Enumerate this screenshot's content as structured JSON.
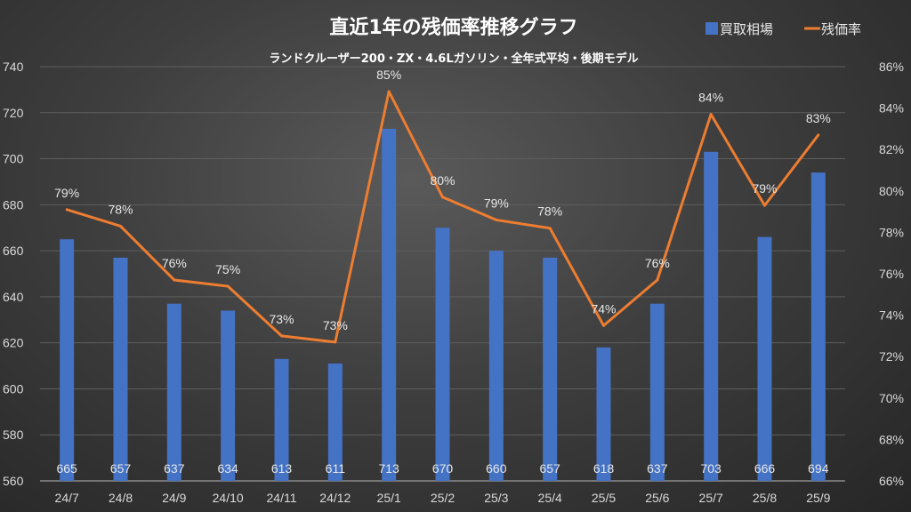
{
  "chart_data": {
    "type": "bar+line",
    "title": "直近1年の残価率推移グラフ",
    "subtitle": "ランドクルーザー200・ZX・4.6Lガソリン・全年式平均・後期モデル",
    "categories": [
      "24/7",
      "24/8",
      "24/9",
      "24/10",
      "24/11",
      "24/12",
      "25/1",
      "25/2",
      "25/3",
      "25/4",
      "25/5",
      "25/6",
      "25/7",
      "25/8",
      "25/9"
    ],
    "series": [
      {
        "name": "買取相場",
        "type": "bar",
        "axis": "left",
        "color": "#4472C4",
        "values": [
          665,
          657,
          637,
          634,
          613,
          611,
          713,
          670,
          660,
          657,
          618,
          637,
          703,
          666,
          694
        ],
        "labels": [
          "665",
          "657",
          "637",
          "634",
          "613",
          "611",
          "713",
          "670",
          "660",
          "657",
          "618",
          "637",
          "703",
          "666",
          "694"
        ]
      },
      {
        "name": "残価率",
        "type": "line",
        "axis": "right",
        "color": "#ED7D31",
        "values": [
          79.1,
          78.3,
          75.7,
          75.4,
          73.0,
          72.7,
          84.8,
          79.7,
          78.6,
          78.2,
          73.5,
          75.7,
          83.7,
          79.3,
          82.7
        ],
        "labels": [
          "79%",
          "78%",
          "76%",
          "75%",
          "73%",
          "73%",
          "85%",
          "80%",
          "79%",
          "78%",
          "74%",
          "76%",
          "84%",
          "79%",
          "83%"
        ]
      }
    ],
    "y_left": {
      "min": 560,
      "max": 740,
      "step": 20,
      "ticks": [
        "560",
        "580",
        "600",
        "620",
        "640",
        "660",
        "680",
        "700",
        "720",
        "740"
      ]
    },
    "y_right": {
      "min": 66,
      "max": 86,
      "step": 2,
      "ticks": [
        "66%",
        "68%",
        "70%",
        "72%",
        "74%",
        "76%",
        "78%",
        "80%",
        "82%",
        "84%",
        "86%"
      ]
    },
    "grid": true,
    "legend": {
      "position": "top-right",
      "entries": [
        "買取相場",
        "残価率"
      ]
    }
  }
}
